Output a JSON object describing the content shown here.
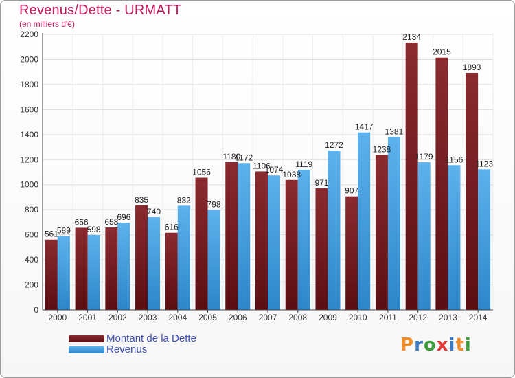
{
  "title": "Revenus/Dette - URMATT",
  "subtitle": "(en milliers d'€)",
  "logo": {
    "text": "Proxiti",
    "letters": [
      {
        "ch": "P",
        "color": "#f28c28"
      },
      {
        "ch": "r",
        "color": "#3a78c2"
      },
      {
        "ch": "o",
        "color": "#3a9e3a"
      },
      {
        "ch": "x",
        "color": "#e53935"
      },
      {
        "ch": "i",
        "color": "#3a78c2"
      },
      {
        "ch": "t",
        "color": "#f28c28"
      },
      {
        "ch": "i",
        "color": "#3a9e3a"
      }
    ]
  },
  "legend": [
    {
      "label": "Montant de la Dette",
      "color": "#7b1f24"
    },
    {
      "label": "Revenus",
      "color": "#4fa3e0"
    }
  ],
  "chart_data": {
    "type": "bar",
    "categories": [
      "2000",
      "2001",
      "2002",
      "2003",
      "2004",
      "2005",
      "2006",
      "2007",
      "2008",
      "2009",
      "2010",
      "2011",
      "2012",
      "2013",
      "2014"
    ],
    "series": [
      {
        "name": "Montant de la Dette",
        "color": "#7b1f24",
        "values": [
          561,
          656,
          658,
          835,
          616,
          1056,
          1180,
          1106,
          1038,
          971,
          907,
          1238,
          2134,
          2015,
          1893
        ],
        "labels": [
          "561",
          "656",
          "658",
          "835",
          "616",
          "1056",
          "1180",
          "1106",
          "1038",
          "971",
          "907",
          "1238",
          "2134",
          "2015",
          "1893"
        ]
      },
      {
        "name": "Revenus",
        "color": "#4fa3e0",
        "values": [
          589,
          598,
          696,
          740,
          832,
          798,
          1172,
          1074,
          1119,
          1272,
          1417,
          1381,
          1179,
          1156,
          1123
        ],
        "labels": [
          "589",
          "598",
          "696",
          "740",
          "832",
          "798",
          "1172",
          "1074",
          "1119",
          "1272",
          "1417",
          "1381",
          "1179",
          "1156",
          "1123"
        ]
      }
    ],
    "ylim": [
      0,
      2200
    ],
    "yticks": [
      0,
      200,
      400,
      600,
      800,
      1000,
      1200,
      1400,
      1600,
      1800,
      2000,
      2200
    ],
    "grid": true,
    "legend_position": "bottom-left"
  }
}
